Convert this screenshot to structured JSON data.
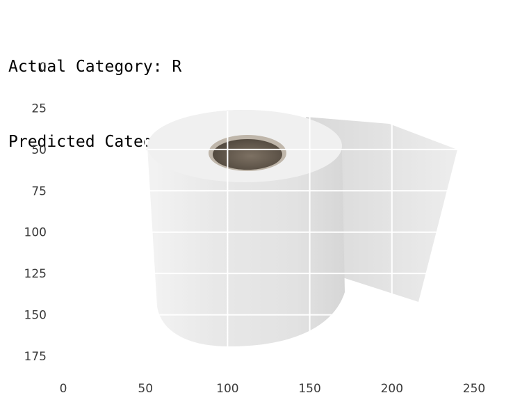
{
  "output": {
    "line1": "Actual Category: R",
    "line2": "Predicted Category: R"
  },
  "chart_data": {
    "type": "image",
    "image_subject": "toilet-paper-roll",
    "x_ticks": [
      0,
      50,
      100,
      150,
      200,
      250
    ],
    "y_ticks": [
      0,
      25,
      50,
      75,
      100,
      125,
      150,
      175
    ],
    "xlim": [
      0,
      256
    ],
    "ylim": [
      190,
      0
    ],
    "grid": true,
    "grid_color": "#ffffff",
    "colors": {
      "paper": "#ececec",
      "paper_shadow": "#d9d9d9",
      "core": "#6a5e50",
      "core_rim": "#f2f2f2",
      "tick_text": "#3a3a3a"
    }
  }
}
